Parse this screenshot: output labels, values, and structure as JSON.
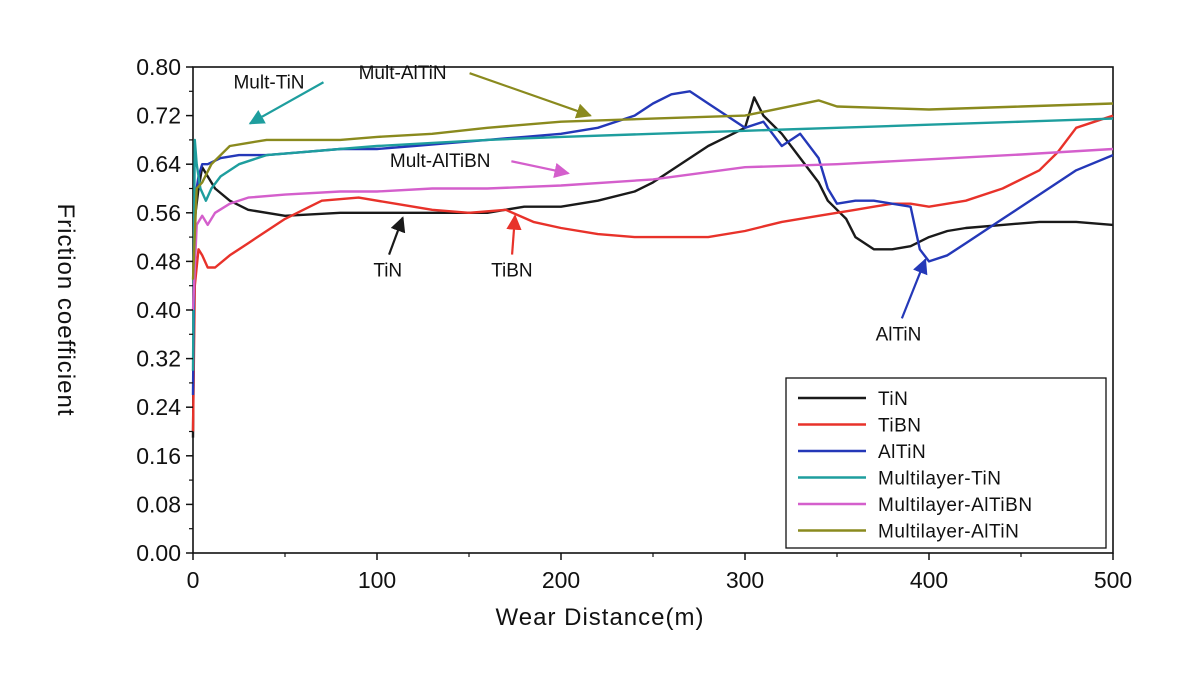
{
  "chart_data": {
    "type": "line",
    "title": "",
    "xlabel": "Wear Distance(m)",
    "ylabel": "Friction coefficient",
    "xlim": [
      0,
      500
    ],
    "ylim": [
      0,
      0.8
    ],
    "xticks": [
      "0",
      "100",
      "200",
      "300",
      "400",
      "500"
    ],
    "yticks": [
      "0.00",
      "0.08",
      "0.16",
      "0.24",
      "0.32",
      "0.40",
      "0.48",
      "0.56",
      "0.64",
      "0.72",
      "0.80"
    ],
    "grid": false,
    "legend_position": "bottom-right",
    "series": [
      {
        "name": "TiN",
        "color": "#1a1a1a",
        "x": [
          0,
          1,
          3,
          5,
          8,
          12,
          20,
          30,
          50,
          80,
          100,
          130,
          160,
          180,
          200,
          220,
          240,
          250,
          260,
          270,
          280,
          290,
          300,
          305,
          310,
          320,
          330,
          340,
          345,
          350,
          355,
          360,
          370,
          380,
          390,
          400,
          410,
          420,
          440,
          460,
          480,
          500
        ],
        "y": [
          0.19,
          0.55,
          0.6,
          0.635,
          0.62,
          0.6,
          0.58,
          0.565,
          0.555,
          0.56,
          0.56,
          0.56,
          0.56,
          0.57,
          0.57,
          0.58,
          0.595,
          0.61,
          0.63,
          0.65,
          0.67,
          0.685,
          0.7,
          0.75,
          0.72,
          0.69,
          0.65,
          0.61,
          0.58,
          0.565,
          0.55,
          0.52,
          0.5,
          0.5,
          0.505,
          0.52,
          0.53,
          0.535,
          0.54,
          0.545,
          0.545,
          0.54
        ]
      },
      {
        "name": "TiBN",
        "color": "#e8322a",
        "x": [
          0,
          1,
          3,
          5,
          8,
          12,
          20,
          30,
          50,
          70,
          90,
          110,
          130,
          150,
          170,
          185,
          200,
          220,
          240,
          260,
          280,
          300,
          320,
          340,
          350,
          360,
          370,
          380,
          390,
          400,
          420,
          440,
          460,
          470,
          480,
          490,
          500
        ],
        "y": [
          0.2,
          0.44,
          0.5,
          0.49,
          0.47,
          0.47,
          0.49,
          0.51,
          0.55,
          0.58,
          0.585,
          0.575,
          0.565,
          0.56,
          0.565,
          0.545,
          0.535,
          0.525,
          0.52,
          0.52,
          0.52,
          0.53,
          0.545,
          0.555,
          0.56,
          0.565,
          0.57,
          0.575,
          0.575,
          0.57,
          0.58,
          0.6,
          0.63,
          0.66,
          0.7,
          0.71,
          0.72
        ]
      },
      {
        "name": "AlTiN",
        "color": "#2438b8",
        "x": [
          0,
          1,
          3,
          5,
          8,
          15,
          25,
          40,
          60,
          80,
          100,
          120,
          140,
          160,
          180,
          200,
          220,
          240,
          250,
          260,
          270,
          280,
          290,
          300,
          310,
          320,
          330,
          340,
          345,
          350,
          360,
          370,
          380,
          390,
          395,
          400,
          410,
          420,
          440,
          460,
          480,
          500
        ],
        "y": [
          0.26,
          0.58,
          0.62,
          0.64,
          0.64,
          0.65,
          0.655,
          0.655,
          0.66,
          0.665,
          0.665,
          0.67,
          0.675,
          0.68,
          0.685,
          0.69,
          0.7,
          0.72,
          0.74,
          0.755,
          0.76,
          0.74,
          0.72,
          0.7,
          0.71,
          0.67,
          0.69,
          0.65,
          0.6,
          0.575,
          0.58,
          0.58,
          0.575,
          0.57,
          0.5,
          0.48,
          0.49,
          0.51,
          0.55,
          0.59,
          0.63,
          0.655
        ]
      },
      {
        "name": "Multilayer-TiN",
        "color": "#1e9e9e",
        "x": [
          0,
          1,
          2,
          4,
          7,
          10,
          15,
          25,
          40,
          60,
          80,
          100,
          130,
          160,
          200,
          250,
          300,
          350,
          400,
          450,
          500
        ],
        "y": [
          0.3,
          0.68,
          0.64,
          0.6,
          0.58,
          0.6,
          0.62,
          0.64,
          0.655,
          0.66,
          0.665,
          0.67,
          0.675,
          0.68,
          0.685,
          0.69,
          0.695,
          0.7,
          0.705,
          0.71,
          0.715
        ]
      },
      {
        "name": "Multilayer-AlTiBN",
        "color": "#d45fcc",
        "x": [
          0,
          2,
          5,
          8,
          12,
          20,
          30,
          50,
          80,
          100,
          130,
          160,
          200,
          250,
          300,
          350,
          400,
          450,
          500
        ],
        "y": [
          0.4,
          0.54,
          0.555,
          0.54,
          0.56,
          0.575,
          0.585,
          0.59,
          0.595,
          0.595,
          0.6,
          0.6,
          0.605,
          0.615,
          0.635,
          0.64,
          0.648,
          0.656,
          0.665
        ]
      },
      {
        "name": "Multilayer-AlTiN",
        "color": "#8a8a1e",
        "x": [
          0,
          2,
          5,
          10,
          20,
          30,
          40,
          60,
          80,
          100,
          130,
          160,
          200,
          250,
          300,
          340,
          350,
          400,
          450,
          500
        ],
        "y": [
          0.45,
          0.6,
          0.61,
          0.64,
          0.67,
          0.675,
          0.68,
          0.68,
          0.68,
          0.685,
          0.69,
          0.7,
          0.71,
          0.715,
          0.72,
          0.745,
          0.735,
          0.73,
          0.735,
          0.74
        ]
      }
    ],
    "annotations": [
      {
        "text": "Mult-TiN",
        "tx": 22,
        "ty": 0.765,
        "ax": 31,
        "ay": 0.707,
        "color": "#1e9e9e"
      },
      {
        "text": "Mult-AlTiN",
        "tx": 90,
        "ty": 0.78,
        "ax": 216,
        "ay": 0.72,
        "color": "#8a8a1e"
      },
      {
        "text": "Mult-AlTiBN",
        "tx": 107,
        "ty": 0.635,
        "ax": 204,
        "ay": 0.625,
        "color": "#d45fcc"
      },
      {
        "text": "TiN",
        "tx": 98,
        "ty": 0.455,
        "ax": 114,
        "ay": 0.552,
        "color": "#1a1a1a"
      },
      {
        "text": "TiBN",
        "tx": 162,
        "ty": 0.455,
        "ax": 175,
        "ay": 0.555,
        "color": "#e8322a"
      },
      {
        "text": "AlTiN",
        "tx": 371,
        "ty": 0.35,
        "ax": 398,
        "ay": 0.483,
        "color": "#2438b8"
      }
    ]
  }
}
